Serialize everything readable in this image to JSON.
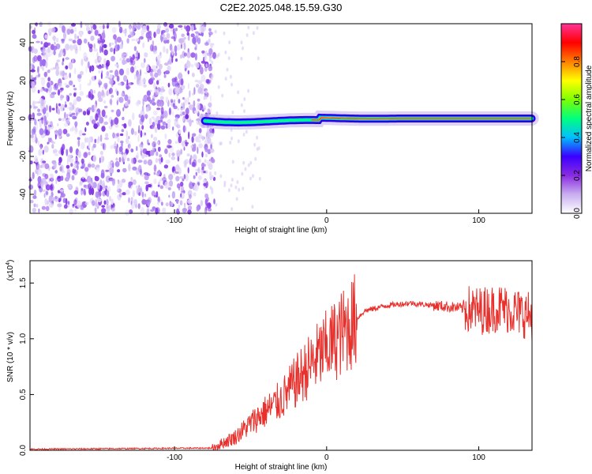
{
  "page_title": "C2E2.2025.048.15.59.G30",
  "chart_data": [
    {
      "type": "heatmap",
      "xlabel": "Height of straight line (km)",
      "ylabel": "Frequency (Hz)",
      "xlim": [
        -195,
        135
      ],
      "ylim": [
        -50,
        50
      ],
      "xticks": [
        -100,
        0,
        100
      ],
      "yticks": [
        -40,
        -20,
        0,
        20,
        40
      ],
      "colorbar": {
        "label": "Normalized spectral amplitude",
        "ticks": [
          "0.0",
          "0.2",
          "0.4",
          "0.6",
          "0.8"
        ],
        "range": [
          0,
          1
        ],
        "colormap": [
          "#ffffff",
          "#c8aef0",
          "#8a2be2",
          "#3a00ff",
          "#00bfff",
          "#00ff7f",
          "#7fff00",
          "#ffff00",
          "#ff7f00",
          "#ff0000",
          "#ff3399"
        ]
      },
      "regions": [
        {
          "name": "noise",
          "x_range": [
            -195,
            -80
          ],
          "f_range": [
            -50,
            50
          ],
          "amplitude": 0.12
        },
        {
          "name": "signal",
          "x_range": [
            -80,
            135
          ],
          "f_center": 0,
          "bandwidth_hz": 4,
          "amplitude": 0.9
        }
      ]
    },
    {
      "type": "line",
      "xlabel": "Height of straight line (km)",
      "ylabel": "SNR (10 * v/v)",
      "scale_label": "(x10",
      "scale_exponent": "4",
      "xlim": [
        -195,
        135
      ],
      "ylim": [
        0,
        1.7
      ],
      "xticks": [
        -100,
        0,
        100
      ],
      "yticks": [
        "0.0",
        "0.5",
        "1.0",
        "1.5"
      ],
      "color": "#e8302c",
      "profile": [
        {
          "x": -195,
          "y": 0.01
        },
        {
          "x": -75,
          "y": 0.02
        },
        {
          "x": -60,
          "y": 0.12
        },
        {
          "x": -45,
          "y": 0.3
        },
        {
          "x": -30,
          "y": 0.45
        },
        {
          "x": -15,
          "y": 0.7
        },
        {
          "x": -5,
          "y": 0.85
        },
        {
          "x": 10,
          "y": 1.05
        },
        {
          "x": 25,
          "y": 1.25
        },
        {
          "x": 40,
          "y": 1.3
        },
        {
          "x": 55,
          "y": 1.32
        },
        {
          "x": 70,
          "y": 1.3
        },
        {
          "x": 85,
          "y": 1.28
        },
        {
          "x": 100,
          "y": 1.25
        },
        {
          "x": 115,
          "y": 1.28
        },
        {
          "x": 135,
          "y": 1.2
        }
      ]
    }
  ]
}
